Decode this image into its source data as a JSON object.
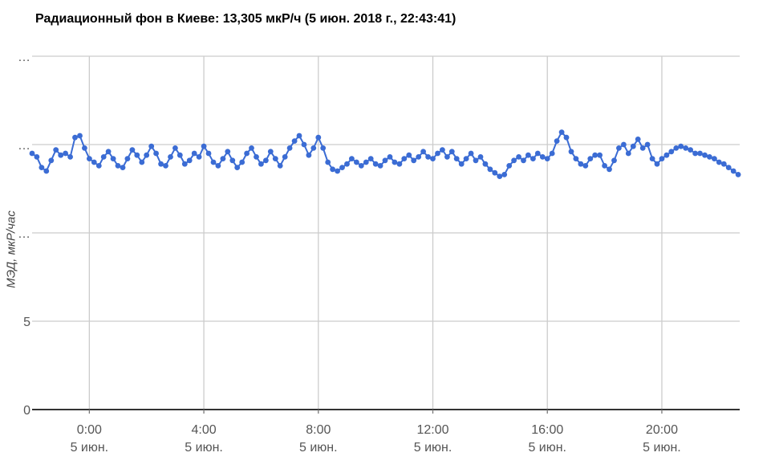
{
  "page": {
    "title": "Радиационный фон в Киеве: 13,305 мкР/ч (5 июн. 2018 г., 22:43:41)"
  },
  "colors": {
    "series": "#3b6cd4",
    "grid": "#cccccc",
    "axis": "#333333",
    "tick": "#777777",
    "label": "#555555",
    "title": "#000000"
  },
  "chart_data": {
    "type": "line",
    "title": "Радиационный фон в Киеве: 13,305 мкР/ч (5 июн. 2018 г., 22:43:41)",
    "xlabel": "",
    "ylabel": "МЭД, мкР/час",
    "series_name": "МЭД",
    "units": "мкР/ч",
    "current_value": "13,305",
    "current_time": "5 июн. 2018 г., 22:43:41",
    "grid": true,
    "legend_position": "none",
    "ylim": [
      0,
      20
    ],
    "x_start_label": "4 июн. 22:00",
    "x_end_label": "5 июн. 22:40",
    "x_start_offset_hours": -2,
    "x_step_minutes": 10,
    "x_range_hours": [
      -2,
      22.72
    ],
    "y_ticks": [
      {
        "value": 0,
        "label": "0"
      },
      {
        "value": 5,
        "label": "5"
      },
      {
        "value": 10,
        "label": "…"
      },
      {
        "value": 15,
        "label": "…"
      },
      {
        "value": 20,
        "label": "…"
      }
    ],
    "x_ticks": [
      {
        "hours": 0,
        "time": "0:00",
        "date": "5 июн."
      },
      {
        "hours": 4,
        "time": "4:00",
        "date": "5 июн."
      },
      {
        "hours": 8,
        "time": "8:00",
        "date": "5 июн."
      },
      {
        "hours": 12,
        "time": "12:00",
        "date": "5 июн."
      },
      {
        "hours": 16,
        "time": "16:00",
        "date": "5 июн."
      },
      {
        "hours": 20,
        "time": "20:00",
        "date": "5 июн."
      }
    ],
    "values": [
      14.5,
      14.3,
      13.7,
      13.5,
      14.1,
      14.7,
      14.4,
      14.5,
      14.3,
      15.4,
      15.5,
      14.8,
      14.2,
      14.0,
      13.8,
      14.3,
      14.6,
      14.2,
      13.8,
      13.7,
      14.2,
      14.7,
      14.4,
      14.0,
      14.4,
      14.9,
      14.5,
      13.9,
      13.8,
      14.3,
      14.8,
      14.4,
      13.9,
      14.1,
      14.5,
      14.3,
      14.9,
      14.5,
      14.0,
      13.8,
      14.2,
      14.6,
      14.1,
      13.7,
      14.0,
      14.5,
      14.8,
      14.3,
      13.9,
      14.1,
      14.6,
      14.2,
      13.8,
      14.3,
      14.8,
      15.2,
      15.5,
      15.0,
      14.4,
      14.8,
      15.4,
      14.8,
      14.0,
      13.6,
      13.5,
      13.7,
      13.9,
      14.2,
      14.0,
      13.8,
      14.0,
      14.2,
      13.9,
      13.8,
      14.1,
      14.3,
      14.0,
      13.9,
      14.2,
      14.4,
      14.1,
      14.3,
      14.6,
      14.3,
      14.2,
      14.5,
      14.7,
      14.3,
      14.6,
      14.2,
      13.9,
      14.2,
      14.5,
      14.1,
      14.3,
      13.9,
      13.6,
      13.4,
      13.2,
      13.3,
      13.8,
      14.1,
      14.3,
      14.1,
      14.4,
      14.2,
      14.5,
      14.3,
      14.2,
      14.5,
      15.2,
      15.7,
      15.4,
      14.6,
      14.2,
      13.9,
      13.8,
      14.2,
      14.4,
      14.4,
      13.8,
      13.6,
      14.1,
      14.8,
      15.0,
      14.5,
      14.9,
      15.3,
      14.8,
      15.0,
      14.2,
      13.9,
      14.2,
      14.4,
      14.6,
      14.8,
      14.9,
      14.8,
      14.7,
      14.5,
      14.5,
      14.4,
      14.3,
      14.2,
      14.0,
      13.9,
      13.7,
      13.5,
      13.3
    ]
  }
}
